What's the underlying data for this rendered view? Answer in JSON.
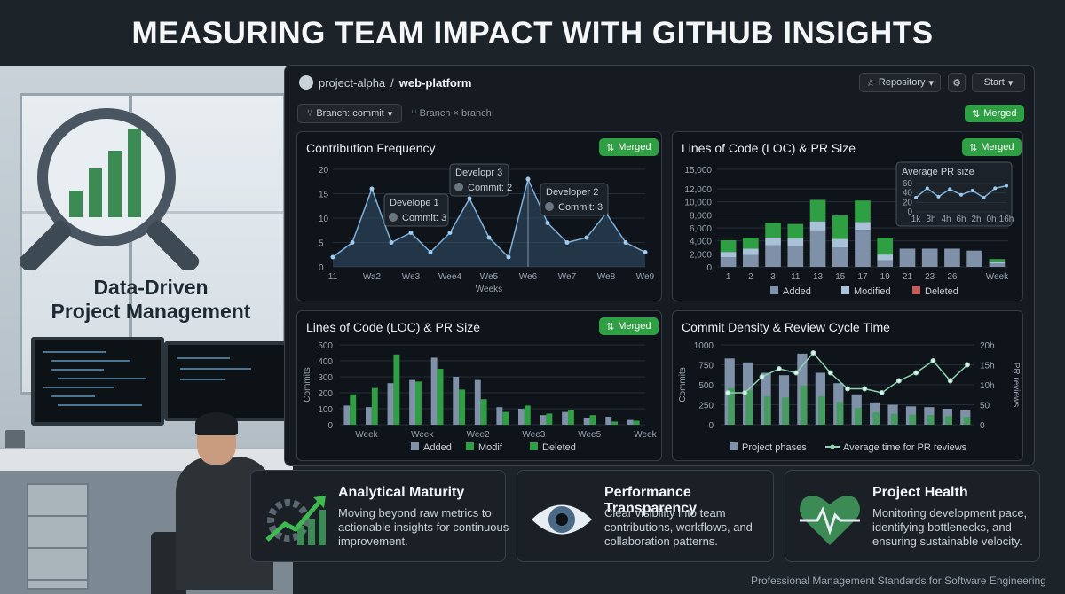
{
  "page_title": "MEASURING TEAM IMPACT WITH GITHUB INSIGHTS",
  "illustration": {
    "tagline_line1": "Data-Driven",
    "tagline_line2": "Project Management"
  },
  "dashboard": {
    "repo_owner": "project-alpha",
    "repo_separator": "/",
    "repo_name": "web-platform",
    "repository_button": "Repository",
    "start_button": "Start",
    "branch_select": "Branch: commit",
    "branch_compare": "Branch × branch",
    "merged_label": "Merged"
  },
  "cards": {
    "contribution": {
      "title": "Contribution Frequency",
      "badge": "Merged",
      "tooltips": [
        {
          "name": "Develope 1",
          "text": "Commit: 3"
        },
        {
          "name": "Developr 3",
          "text": "Commit: 2"
        },
        {
          "name": "Developer 2",
          "text": "Commit: 3"
        }
      ]
    },
    "loc_top": {
      "title": "Lines of Code (LOC) & PR Size",
      "badge": "Merged",
      "inset_title": "Average PR size"
    },
    "loc_bottom": {
      "title": "Lines of Code (LOC) & PR Size",
      "badge": "Merged"
    },
    "density": {
      "title": "Commit Density & Review Cycle Time"
    }
  },
  "chart_data": [
    {
      "type": "line",
      "title": "Contribution Frequency",
      "xlabel": "Weeks",
      "x_ticks": [
        "11",
        "Wa2",
        "We3",
        "Wee4",
        "We5",
        "We6",
        "We7",
        "We8",
        "We9"
      ],
      "y_ticks": [
        0,
        5,
        10,
        15,
        20
      ],
      "ylim": [
        0,
        20
      ],
      "values": [
        2,
        5,
        16,
        5,
        7,
        3,
        7,
        14,
        6,
        2,
        18,
        9,
        5,
        6,
        11,
        5,
        3
      ],
      "grid": true
    },
    {
      "type": "bar",
      "title": "Lines of Code (LOC) & PR Size",
      "categories": [
        "1",
        "2",
        "3",
        "11",
        "13",
        "15",
        "17",
        "19",
        "21",
        "23",
        "26",
        "",
        "Week"
      ],
      "y_ticks": [
        "0",
        "2,000",
        "4,000",
        "6,000",
        "8,000",
        "10,000",
        "12,000",
        "15,000"
      ],
      "series": [
        {
          "name": "Added",
          "values": [
            1500,
            1800,
            3300,
            3200,
            5600,
            3000,
            5700,
            1000,
            2800,
            2800,
            2800,
            2500,
            500
          ]
        },
        {
          "name": "Modified",
          "values": [
            800,
            1000,
            1200,
            1200,
            1400,
            1300,
            1200,
            900,
            0,
            0,
            0,
            0,
            300
          ]
        },
        {
          "name": "Deleted",
          "values": [
            1800,
            1700,
            2300,
            2200,
            3300,
            3600,
            3300,
            2600,
            0,
            0,
            0,
            0,
            400
          ]
        }
      ],
      "inset": {
        "title": "Average PR size",
        "y_ticks": [
          0,
          20,
          40,
          60
        ],
        "x_ticks": [
          "1k",
          "3h",
          "4h",
          "6h",
          "2h",
          "0h",
          "16h"
        ],
        "values": [
          30,
          50,
          32,
          48,
          36,
          45,
          30,
          50,
          55
        ]
      }
    },
    {
      "type": "bar",
      "title": "Lines of Code (LOC) & PR Size",
      "ylabel": "Commits",
      "x_ticks": [
        "Week",
        "Week",
        "Wee2",
        "Wee3",
        "Wee5",
        "Week"
      ],
      "y_ticks": [
        0,
        100,
        200,
        300,
        400,
        500
      ],
      "series": [
        {
          "name": "Added",
          "values": [
            120,
            110,
            260,
            280,
            420,
            300,
            280,
            110,
            100,
            60,
            80,
            40,
            50,
            30
          ]
        },
        {
          "name": "Modif",
          "values": [
            190,
            230,
            440,
            270,
            350,
            220,
            160,
            80,
            120,
            70,
            90,
            60,
            20,
            25
          ]
        },
        {
          "name": "Deleted",
          "values": [
            0,
            0,
            0,
            0,
            0,
            0,
            0,
            0,
            0,
            0,
            0,
            0,
            0,
            0
          ]
        }
      ]
    },
    {
      "type": "bar",
      "title": "Commit Density & Review Cycle Time",
      "ylabel": "Commits",
      "y2label": "PR reviews",
      "y_ticks": [
        0,
        250,
        500,
        750,
        1000
      ],
      "y2_ticks": [
        "0",
        "50",
        "10h",
        "15h",
        "20h"
      ],
      "series": [
        {
          "name": "Project phases",
          "values": [
            830,
            780,
            650,
            620,
            890,
            650,
            520,
            380,
            280,
            250,
            230,
            220,
            200,
            180
          ]
        },
        {
          "name": "Average time for PR reviews",
          "values": [
            8,
            8,
            12,
            14,
            13,
            18,
            13,
            9,
            9,
            8,
            11,
            13,
            16,
            11,
            15
          ]
        }
      ]
    }
  ],
  "info_cards": [
    {
      "title": "Analytical Maturity",
      "text": "Moving beyond raw metrics to actionable insights for continuous improvement."
    },
    {
      "title": "Performance Transparency",
      "text": "Clear visibility into team contributions, workflows, and collaboration patterns."
    },
    {
      "title": "Project Health",
      "text": "Monitoring development pace, identifying bottlenecks, and ensuring sustainable velocity."
    }
  ],
  "footer": "Professional Management Standards for Software Engineering",
  "colors": {
    "accent_green": "#2ea043",
    "bar_blue": "#7f91a8",
    "bar_light": "#a9c2d8",
    "bar_red": "#c45a5a"
  }
}
